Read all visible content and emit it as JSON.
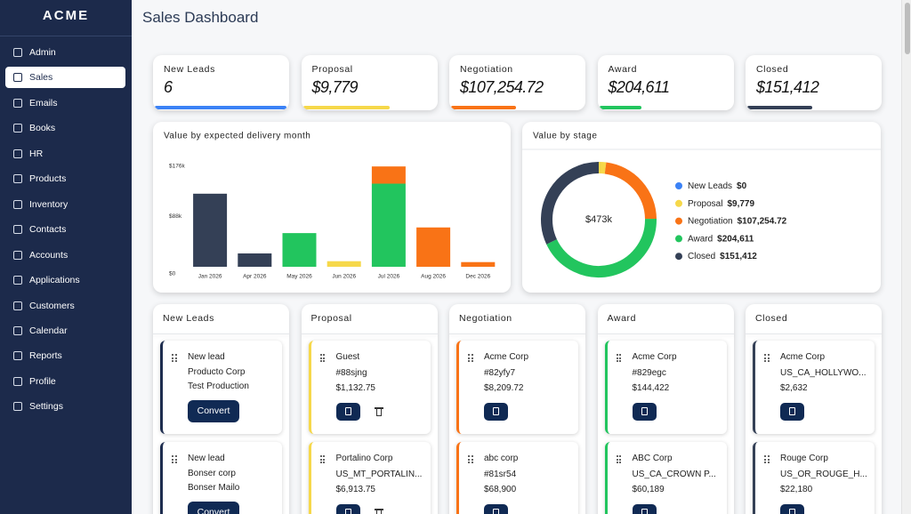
{
  "sidebar": {
    "brand": "ACME",
    "active": 1,
    "nav": [
      "Admin",
      "Sales",
      "Emails",
      "Books",
      "HR",
      "Products",
      "Inventory",
      "Contacts",
      "Accounts",
      "Applications",
      "Customers",
      "Calendar",
      "Reports",
      "Profile",
      "Settings"
    ]
  },
  "header": {
    "title": "Sales Dashboard"
  },
  "stats": [
    {
      "label": "New Leads",
      "value": "6",
      "color": "#3b82f6",
      "progress": 100
    },
    {
      "label": "Proposal",
      "value": "$9,779",
      "color": "#f6d84a",
      "progress": 66
    },
    {
      "label": "Negotiation",
      "value": "$107,254.72",
      "color": "#f97316",
      "progress": 49
    },
    {
      "label": "Award",
      "value": "$204,611",
      "color": "#22c55e",
      "progress": 32
    },
    {
      "label": "Closed",
      "value": "$151,412",
      "color": "#344056",
      "progress": 49
    }
  ],
  "chart_data": [
    {
      "type": "bar",
      "title": "Value by expected delivery month",
      "stacked": true,
      "categories": [
        "Jan 2026",
        "Apr 2026",
        "May 2026",
        "Jun 2026",
        "Jul 2026",
        "Aug 2026",
        "Dec 2026"
      ],
      "series": [
        {
          "color": "#344056",
          "values": [
            128000,
            23400,
            null,
            null,
            null,
            null,
            null
          ]
        },
        {
          "color": "#22c55e",
          "values": [
            null,
            null,
            59000,
            null,
            145600,
            null,
            null
          ]
        },
        {
          "color": "#f6d84a",
          "values": [
            null,
            null,
            null,
            9779,
            null,
            null,
            null
          ]
        },
        {
          "color": "#f97316",
          "values": [
            null,
            null,
            null,
            null,
            30145,
            68900,
            8210
          ]
        }
      ],
      "ylim": [
        0,
        176000
      ],
      "yticks": [
        {
          "value": 0,
          "label": "$0"
        },
        {
          "value": 88000,
          "label": "$88k"
        },
        {
          "value": 176000,
          "label": "$176k"
        }
      ]
    },
    {
      "type": "donut",
      "title": "Value by stage",
      "center_label": "$473k",
      "categories": [
        "New Leads",
        "Proposal",
        "Negotiation",
        "Award",
        "Closed"
      ],
      "values": [
        0,
        9779,
        107254.72,
        204611,
        151412
      ],
      "value_labels": [
        "$0",
        "$9,779",
        "$107,254.72",
        "$204,611",
        "$151,412"
      ],
      "colors": [
        "#3b82f6",
        "#f6d84a",
        "#f97316",
        "#22c55e",
        "#344056"
      ]
    }
  ],
  "board": {
    "columns": [
      {
        "title": "New Leads",
        "color": "#1e2d4f",
        "cards": [
          {
            "lines": [
              "New lead",
              "Producto Corp",
              "Test Production"
            ],
            "action": "Convert"
          },
          {
            "lines": [
              "New lead",
              "Bonser corp",
              "Bonser Mailo"
            ],
            "action": "Convert"
          }
        ]
      },
      {
        "title": "Proposal",
        "color": "#f6d84a",
        "deletable": true,
        "cards": [
          {
            "lines": [
              "Guest",
              "#88sjng",
              "$1,132.75"
            ]
          },
          {
            "lines": [
              "Portalino Corp",
              "US_MT_PORTALIN...",
              "$6,913.75"
            ]
          }
        ]
      },
      {
        "title": "Negotiation",
        "color": "#f97316",
        "cards": [
          {
            "lines": [
              "Acme Corp",
              "#82yfy7",
              "$8,209.72"
            ]
          },
          {
            "lines": [
              "abc corp",
              "#81sr54",
              "$68,900"
            ]
          }
        ]
      },
      {
        "title": "Award",
        "color": "#22c55e",
        "cards": [
          {
            "lines": [
              "Acme Corp",
              "#829egc",
              "$144,422"
            ]
          },
          {
            "lines": [
              "ABC Corp",
              "US_CA_CROWN P...",
              "$60,189"
            ]
          }
        ]
      },
      {
        "title": "Closed",
        "color": "#344056",
        "cards": [
          {
            "lines": [
              "Acme Corp",
              "US_CA_HOLLYWO...",
              "$2,632"
            ]
          },
          {
            "lines": [
              "Rouge Corp",
              "US_OR_ROUGE_H...",
              "$22,180"
            ]
          }
        ]
      }
    ]
  }
}
